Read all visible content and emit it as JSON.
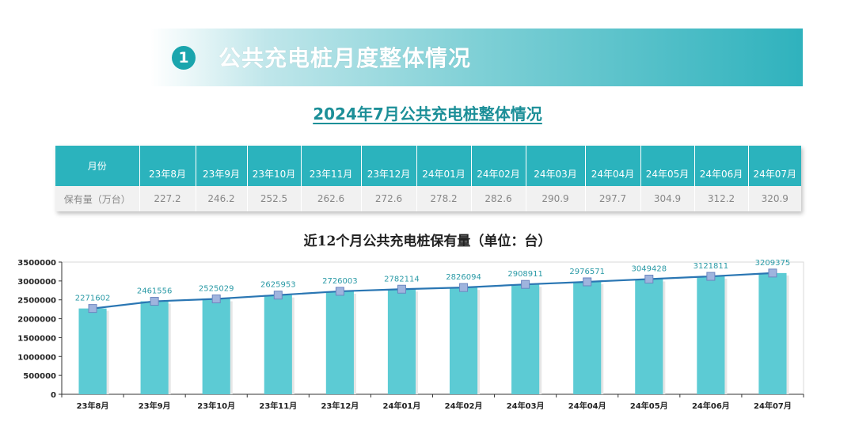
{
  "banner": {
    "number": "1",
    "title": "公共充电桩月度整体情况"
  },
  "subtitle": "2024年7月公共充电桩整体情况",
  "table": {
    "header_label": "月份",
    "row_label": "保有量（万台）",
    "months": [
      "23年8月",
      "23年9月",
      "23年10月",
      "23年11月",
      "23年12月",
      "24年01月",
      "24年02月",
      "24年03月",
      "24年04月",
      "24年05月",
      "24年06月",
      "24年07月"
    ],
    "values": [
      "227.2",
      "246.2",
      "252.5",
      "262.6",
      "272.6",
      "278.2",
      "282.6",
      "290.9",
      "297.7",
      "304.9",
      "312.2",
      "320.9"
    ]
  },
  "chart_data": {
    "type": "bar",
    "title": "近12个月公共充电桩保有量（单位：台）",
    "categories": [
      "23年8月",
      "23年9月",
      "23年10月",
      "23年11月",
      "23年12月",
      "24年01月",
      "24年02月",
      "24年03月",
      "24年04月",
      "24年05月",
      "24年06月",
      "24年07月"
    ],
    "values": [
      2271602,
      2461556,
      2525029,
      2625953,
      2726003,
      2782114,
      2826094,
      2908911,
      2976571,
      3049428,
      3121811,
      3209375
    ],
    "overlay": "line",
    "ylim": [
      0,
      3500000
    ],
    "yticks": [
      "0",
      "500000",
      "1000000",
      "1500000",
      "2000000",
      "2500000",
      "3000000",
      "3500000"
    ],
    "grid": false,
    "bar_color": "#5ccbd4",
    "line_color": "#2a76b3"
  }
}
